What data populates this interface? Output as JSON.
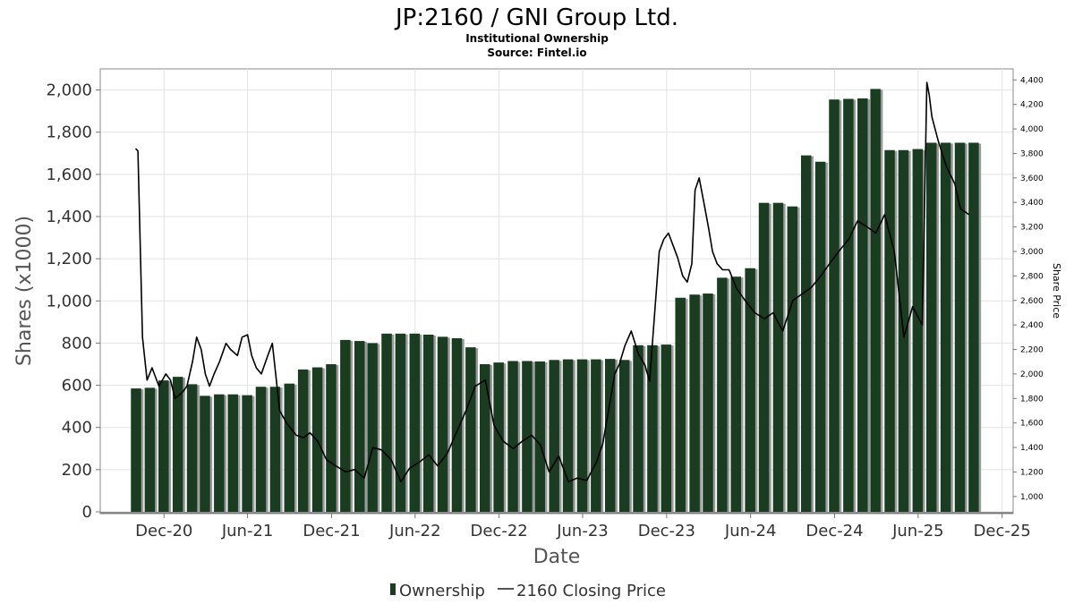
{
  "chart_data": {
    "type": "bar",
    "title": "JP:2160 / GNI Group Ltd.",
    "subtitle": "Institutional Ownership",
    "source": "Source: Fintel.io",
    "xlabel": "Date",
    "ylabel": "Shares (x1000)",
    "y2label": "Share Price",
    "ylim": [
      0,
      2100
    ],
    "y2lim": [
      860,
      4490
    ],
    "yticks": [
      0,
      200,
      400,
      600,
      800,
      1000,
      1200,
      1400,
      1600,
      1800,
      2000
    ],
    "yticklabels": [
      "0",
      "200",
      "400",
      "600",
      "800",
      "1,000",
      "1,200",
      "1,400",
      "1,600",
      "1,800",
      "2,000"
    ],
    "y2ticks": [
      1000,
      1200,
      1400,
      1600,
      1800,
      2000,
      2200,
      2400,
      2600,
      2800,
      3000,
      3200,
      3400,
      3600,
      3800,
      4000,
      4200,
      4400
    ],
    "y2ticklabels": [
      "1,000",
      "1,200",
      "1,400",
      "1,600",
      "1,800",
      "2,000",
      "2,200",
      "2,400",
      "2,600",
      "2,800",
      "3,000",
      "3,200",
      "3,400",
      "3,600",
      "3,800",
      "4,000",
      "4,200",
      "4,400"
    ],
    "xrange": [
      "2020-07-15",
      "2025-12-25"
    ],
    "xticks": [
      "2020-12-01",
      "2021-06-01",
      "2021-12-01",
      "2022-06-01",
      "2022-12-01",
      "2023-06-01",
      "2023-12-01",
      "2024-06-01",
      "2024-12-01",
      "2025-06-01",
      "2025-12-01"
    ],
    "xticklabels": [
      "Dec-20",
      "Jun-21",
      "Dec-21",
      "Jun-22",
      "Dec-22",
      "Jun-23",
      "Dec-23",
      "Jun-24",
      "Dec-24",
      "Jun-25",
      "Dec-25"
    ],
    "grid": true,
    "legend_position": "bottom-center",
    "series": [
      {
        "name": "Ownership",
        "type": "bar",
        "color": "#1a3d22",
        "x": [
          "2020-10-01",
          "2020-10-31",
          "2020-11-30",
          "2020-12-31",
          "2021-01-31",
          "2021-02-28",
          "2021-03-31",
          "2021-04-30",
          "2021-05-31",
          "2021-06-30",
          "2021-07-31",
          "2021-08-31",
          "2021-09-30",
          "2021-10-31",
          "2021-11-30",
          "2021-12-31",
          "2022-01-31",
          "2022-02-28",
          "2022-03-31",
          "2022-04-30",
          "2022-05-31",
          "2022-06-30",
          "2022-07-31",
          "2022-08-31",
          "2022-09-30",
          "2022-10-31",
          "2022-11-30",
          "2022-12-31",
          "2023-01-31",
          "2023-02-28",
          "2023-03-31",
          "2023-04-30",
          "2023-05-31",
          "2023-06-30",
          "2023-07-31",
          "2023-08-31",
          "2023-09-30",
          "2023-10-31",
          "2023-11-30",
          "2023-12-31",
          "2024-01-31",
          "2024-02-29",
          "2024-03-31",
          "2024-04-30",
          "2024-05-31",
          "2024-06-30",
          "2024-07-31",
          "2024-08-31",
          "2024-09-30",
          "2024-10-31",
          "2024-11-30",
          "2024-12-31",
          "2025-01-31",
          "2025-02-28",
          "2025-03-31",
          "2025-04-30",
          "2025-05-31",
          "2025-06-30",
          "2025-07-31",
          "2025-08-31",
          "2025-09-30"
        ],
        "values": [
          585,
          588,
          623,
          640,
          605,
          550,
          557,
          557,
          553,
          593,
          593,
          608,
          675,
          685,
          700,
          815,
          810,
          800,
          845,
          845,
          845,
          840,
          830,
          823,
          780,
          700,
          708,
          715,
          715,
          713,
          720,
          723,
          723,
          723,
          725,
          720,
          790,
          790,
          793,
          1015,
          1030,
          1035,
          1110,
          1115,
          1155,
          1465,
          1465,
          1448,
          1690,
          1660,
          1955,
          1958,
          1960,
          2005,
          1715,
          1715,
          1720,
          1750,
          1750,
          1750,
          1750
        ]
      },
      {
        "name": "2160 Closing Price",
        "type": "line",
        "color": "#000000",
        "x": [
          "2020-09-30",
          "2020-10-05",
          "2020-10-15",
          "2020-10-25",
          "2020-11-05",
          "2020-11-20",
          "2020-12-05",
          "2020-12-15",
          "2020-12-25",
          "2021-01-10",
          "2021-01-20",
          "2021-02-01",
          "2021-02-10",
          "2021-02-20",
          "2021-03-01",
          "2021-03-10",
          "2021-03-20",
          "2021-04-01",
          "2021-04-15",
          "2021-04-25",
          "2021-05-10",
          "2021-05-20",
          "2021-06-01",
          "2021-06-10",
          "2021-06-20",
          "2021-07-01",
          "2021-07-15",
          "2021-07-25",
          "2021-08-10",
          "2021-08-25",
          "2021-09-15",
          "2021-10-01",
          "2021-10-15",
          "2021-11-01",
          "2021-11-20",
          "2021-12-10",
          "2022-01-01",
          "2022-01-20",
          "2022-02-10",
          "2022-03-01",
          "2022-03-20",
          "2022-04-10",
          "2022-05-01",
          "2022-05-20",
          "2022-06-10",
          "2022-07-01",
          "2022-07-20",
          "2022-08-10",
          "2022-09-01",
          "2022-09-20",
          "2022-10-10",
          "2022-11-01",
          "2022-11-20",
          "2022-12-10",
          "2023-01-01",
          "2023-01-20",
          "2023-02-10",
          "2023-03-01",
          "2023-03-20",
          "2023-04-10",
          "2023-05-01",
          "2023-05-20",
          "2023-06-10",
          "2023-07-01",
          "2023-07-15",
          "2023-07-25",
          "2023-08-01",
          "2023-08-10",
          "2023-08-20",
          "2023-09-01",
          "2023-09-15",
          "2023-10-01",
          "2023-10-15",
          "2023-10-25",
          "2023-11-05",
          "2023-11-15",
          "2023-11-25",
          "2023-12-05",
          "2023-12-15",
          "2023-12-25",
          "2024-01-05",
          "2024-01-15",
          "2024-01-25",
          "2024-02-01",
          "2024-02-10",
          "2024-02-20",
          "2024-03-01",
          "2024-03-10",
          "2024-03-20",
          "2024-04-01",
          "2024-04-15",
          "2024-05-01",
          "2024-05-20",
          "2024-06-10",
          "2024-07-01",
          "2024-07-20",
          "2024-08-10",
          "2024-09-01",
          "2024-09-20",
          "2024-10-10",
          "2024-11-01",
          "2024-11-20",
          "2024-12-10",
          "2025-01-01",
          "2025-01-20",
          "2025-02-10",
          "2025-03-01",
          "2025-03-20",
          "2025-04-10",
          "2025-05-01",
          "2025-05-20",
          "2025-06-10",
          "2025-06-20",
          "2025-06-25",
          "2025-07-01",
          "2025-07-15",
          "2025-08-01",
          "2025-08-20",
          "2025-09-01",
          "2025-09-20"
        ],
        "values": [
          3840,
          3820,
          2300,
          1950,
          2050,
          1900,
          2000,
          1950,
          1800,
          1850,
          1900,
          2100,
          2300,
          2200,
          2000,
          1900,
          2000,
          2100,
          2250,
          2200,
          2150,
          2300,
          2320,
          2150,
          2050,
          2000,
          2150,
          2250,
          1700,
          1600,
          1500,
          1480,
          1520,
          1450,
          1300,
          1250,
          1200,
          1220,
          1150,
          1400,
          1380,
          1300,
          1120,
          1230,
          1280,
          1340,
          1250,
          1350,
          1540,
          1700,
          1900,
          1950,
          1580,
          1450,
          1390,
          1450,
          1500,
          1420,
          1200,
          1330,
          1120,
          1150,
          1130,
          1280,
          1430,
          1650,
          1800,
          2000,
          2080,
          2230,
          2350,
          2160,
          2070,
          1940,
          2500,
          3000,
          3100,
          3150,
          3050,
          2950,
          2800,
          2750,
          2900,
          3500,
          3600,
          3400,
          3200,
          3000,
          2900,
          2850,
          2850,
          2700,
          2600,
          2500,
          2450,
          2500,
          2350,
          2600,
          2650,
          2700,
          2800,
          2900,
          3000,
          3100,
          3250,
          3200,
          3150,
          3300,
          3000,
          2300,
          2550,
          2400,
          4380,
          4280,
          4100,
          3900,
          3700,
          3550,
          3350,
          3300
        ]
      }
    ]
  },
  "legend": {
    "items": [
      {
        "label": "Ownership",
        "color": "#1a3d22"
      },
      {
        "label": "2160 Closing Price",
        "color": "#000000"
      }
    ]
  }
}
